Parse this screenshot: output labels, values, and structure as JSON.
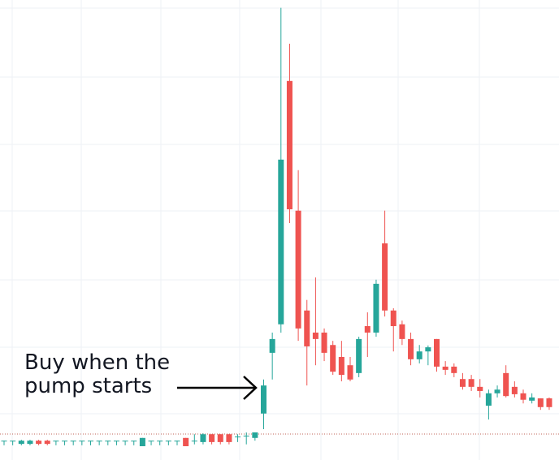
{
  "chart_data": {
    "type": "candlestick",
    "annotation": [
      "Buy when the",
      "pump starts"
    ],
    "up_color": "#26a69a",
    "down_color": "#ef5350",
    "ylim": [
      0,
      100
    ],
    "grid": true,
    "open": [
      4.2,
      4.2,
      3.5,
      3.5,
      4.2,
      4.2,
      4.2,
      4.2,
      4.2,
      4.2,
      4.2,
      4.2,
      4.2,
      4.2,
      4.2,
      4.2,
      3.0,
      4.2,
      4.2,
      4.2,
      4.2,
      4.8,
      4.2,
      3.9,
      5.6,
      5.6,
      5.6,
      5.1,
      5.3,
      4.8,
      10.1,
      23.3,
      29.5,
      82.4,
      54.2,
      32.5,
      27.7,
      27.7,
      25.0,
      22.4,
      20.6,
      18.9,
      29.1,
      27.7,
      47.1,
      32.5,
      29.5,
      26.3,
      21.9,
      23.6,
      26.3,
      20.3,
      20.3,
      17.6,
      17.6,
      15.9,
      11.8,
      14.5,
      18.9,
      15.9,
      14.5,
      12.9,
      13.4,
      13.4
    ],
    "high": [
      4.2,
      4.2,
      4.4,
      4.4,
      4.4,
      4.4,
      4.2,
      4.2,
      4.2,
      4.2,
      4.2,
      4.2,
      4.2,
      4.2,
      4.2,
      4.2,
      4.8,
      4.2,
      4.2,
      4.2,
      4.2,
      4.8,
      5.6,
      5.8,
      5.6,
      5.6,
      5.6,
      5.6,
      6.0,
      6.0,
      17.5,
      27.7,
      98.3,
      90.5,
      63.0,
      34.8,
      39.7,
      28.6,
      25.9,
      25.9,
      22.4,
      26.8,
      32.1,
      39.2,
      54.2,
      33.0,
      30.3,
      27.7,
      25.0,
      24.9,
      26.3,
      21.5,
      21.0,
      18.9,
      18.5,
      17.6,
      15.3,
      16.2,
      20.6,
      17.1,
      15.3,
      14.5,
      13.4,
      13.6
    ],
    "low": [
      3.2,
      3.2,
      3.2,
      3.2,
      3.2,
      3.2,
      3.2,
      3.2,
      3.2,
      3.2,
      3.2,
      3.2,
      3.2,
      3.2,
      3.2,
      3.2,
      3.0,
      3.2,
      3.2,
      3.2,
      3.2,
      3.0,
      3.4,
      3.4,
      3.4,
      3.4,
      3.4,
      3.9,
      3.4,
      4.2,
      6.7,
      17.5,
      27.7,
      51.5,
      25.9,
      16.2,
      20.6,
      21.5,
      18.5,
      17.1,
      17.1,
      18.0,
      22.4,
      26.8,
      31.2,
      23.6,
      25.0,
      20.6,
      21.0,
      20.6,
      19.2,
      18.5,
      18.0,
      15.3,
      15.0,
      13.6,
      8.8,
      13.6,
      13.6,
      13.6,
      12.3,
      12.3,
      10.9,
      10.9
    ],
    "close": [
      4.2,
      4.2,
      4.2,
      4.2,
      3.5,
      3.5,
      4.2,
      4.2,
      4.2,
      4.2,
      4.2,
      4.2,
      4.2,
      4.2,
      4.2,
      4.2,
      4.8,
      4.2,
      4.2,
      4.2,
      4.2,
      3.0,
      4.2,
      5.6,
      3.9,
      3.9,
      3.9,
      5.1,
      5.3,
      6.0,
      16.2,
      26.3,
      65.3,
      54.5,
      28.6,
      24.7,
      26.3,
      23.3,
      19.2,
      18.5,
      17.5,
      26.3,
      27.7,
      38.3,
      32.5,
      29.1,
      26.3,
      21.9,
      23.6,
      24.5,
      20.3,
      19.6,
      18.9,
      15.9,
      15.9,
      15.0,
      14.5,
      15.3,
      13.9,
      14.3,
      13.1,
      13.6,
      11.5,
      11.5
    ]
  }
}
